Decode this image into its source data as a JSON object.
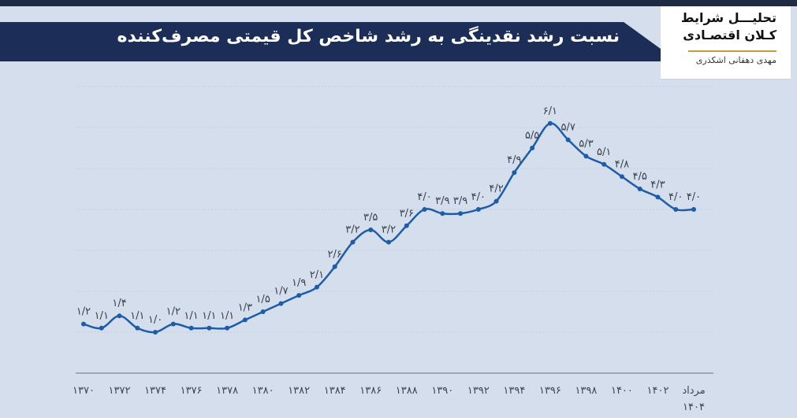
{
  "header": {
    "title": "نسبت رشد نقدینگی به رشد شاخص کل قیمتی مصرف‌کننده",
    "brand_line1": "تحلیـــل شرایط",
    "brand_line2": "کـلان اقتصـادی",
    "author": "مهدی دهقانی اشکذری"
  },
  "colors": {
    "line": "#1f5ca6",
    "banner": "#1c2e57",
    "background": "#d4deec",
    "grid": "#c2cfe0"
  },
  "chart_data": {
    "type": "line",
    "ylim": [
      0,
      7
    ],
    "grid": true,
    "x": [
      "۱۳۷۰",
      "۱۳۷۱",
      "۱۳۷۲",
      "۱۳۷۳",
      "۱۳۷۴",
      "۱۳۷۵",
      "۱۳۷۶",
      "۱۳۷۷",
      "۱۳۷۸",
      "۱۳۷۹",
      "۱۳۸۰",
      "۱۳۸۱",
      "۱۳۸۲",
      "۱۳۸۳",
      "۱۳۸۴",
      "۱۳۸۵",
      "۱۳۸۶",
      "۱۳۸۷",
      "۱۳۸۸",
      "۱۳۸۹",
      "۱۳۹۰",
      "۱۳۹۱",
      "۱۳۹۲",
      "۱۳۹۳",
      "۱۳۹۴",
      "۱۳۹۵",
      "۱۳۹۶",
      "۱۳۹۷",
      "۱۳۹۸",
      "۱۳۹۹",
      "۱۴۰۰",
      "۱۴۰۱",
      "۱۴۰۲",
      "۱۴۰۳",
      "مرداد ۱۴۰۴"
    ],
    "values": [
      1.2,
      1.1,
      1.4,
      1.1,
      1.0,
      1.2,
      1.1,
      1.1,
      1.1,
      1.3,
      1.5,
      1.7,
      1.9,
      2.1,
      2.6,
      3.2,
      3.5,
      3.2,
      3.6,
      4.0,
      3.9,
      3.9,
      4.0,
      4.2,
      4.9,
      5.5,
      6.1,
      5.7,
      5.3,
      5.1,
      4.8,
      4.5,
      4.3,
      4.0,
      4.0
    ],
    "data_labels": [
      "۱/۲",
      "۱/۱",
      "۱/۴",
      "۱/۱",
      "۱/۰",
      "۱/۲",
      "۱/۱",
      "۱/۱",
      "۱/۱",
      "۱/۳",
      "۱/۵",
      "۱/۷",
      "۱/۹",
      "۲/۱",
      "۲/۶",
      "۳/۲",
      "۳/۵",
      "۳/۲",
      "۳/۶",
      "۴/۰",
      "۳/۹",
      "۳/۹",
      "۴/۰",
      "۴/۲",
      "۴/۹",
      "۵/۵",
      "۶/۱",
      "۵/۷",
      "۵/۳",
      "۵/۱",
      "۴/۸",
      "۴/۵",
      "۴/۳",
      "۴/۰",
      "۴/۰"
    ],
    "tick_labels": [
      "۱۳۷۰",
      "۱۳۷۲",
      "۱۳۷۴",
      "۱۳۷۶",
      "۱۳۷۸",
      "۱۳۸۰",
      "۱۳۸۲",
      "۱۳۸۴",
      "۱۳۸۶",
      "۱۳۸۸",
      "۱۳۹۰",
      "۱۳۹۲",
      "۱۳۹۴",
      "۱۳۹۶",
      "۱۳۹۸",
      "۱۴۰۰",
      "۱۴۰۲",
      "مرداد",
      "۱۴۰۴"
    ],
    "tick_index": [
      0,
      2,
      4,
      6,
      8,
      10,
      12,
      14,
      16,
      18,
      20,
      22,
      24,
      26,
      28,
      30,
      32,
      34
    ]
  }
}
